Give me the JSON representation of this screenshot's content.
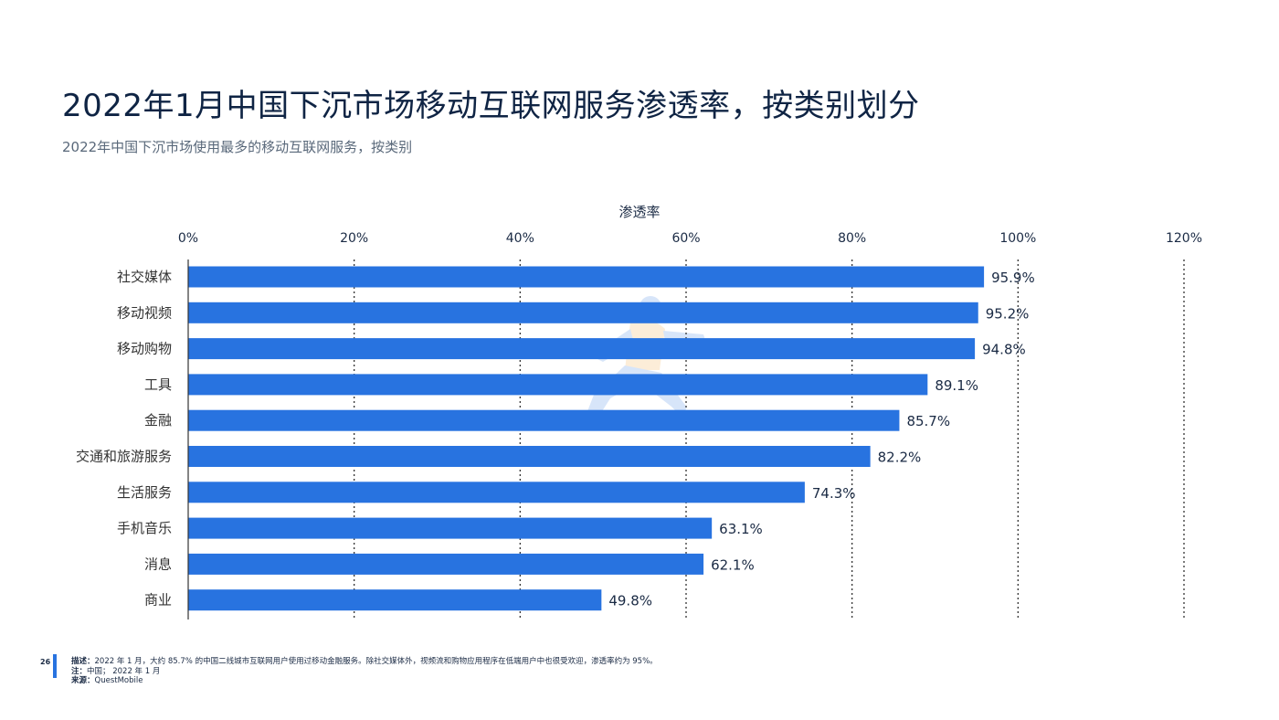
{
  "header": {
    "title": "2022年1月中国下沉市场移动互联网服务渗透率，按类别划分",
    "subtitle": "2022年中国下沉市场使用最多的移动互联网服务，按类别"
  },
  "chart_data": {
    "type": "bar",
    "orientation": "horizontal",
    "xlabel": "渗透率",
    "ylabel": "",
    "xlim": [
      0,
      120
    ],
    "x_ticks": [
      "0%",
      "20%",
      "40%",
      "60%",
      "80%",
      "100%",
      "120%"
    ],
    "x_tick_values": [
      0,
      20,
      40,
      60,
      80,
      100,
      120
    ],
    "categories": [
      "社交媒体",
      "移动视频",
      "移动购物",
      "工具",
      "金融",
      "交通和旅游服务",
      "生活服务",
      "手机音乐",
      "消息",
      "商业"
    ],
    "values": [
      95.9,
      95.2,
      94.8,
      89.1,
      85.7,
      82.2,
      74.3,
      63.1,
      62.1,
      49.8
    ],
    "value_labels": [
      "95.9%",
      "95.2%",
      "94.8%",
      "89.1%",
      "85.7%",
      "82.2%",
      "74.3%",
      "63.1%",
      "62.1%",
      "49.8%"
    ],
    "bar_color": "#2873e0",
    "grid": "vertical-dotted",
    "axis_position": "top"
  },
  "footer": {
    "page_number": "26",
    "description_label": "描述：",
    "description": "2022 年 1 月，大约 85.7% 的中国二线城市互联网用户使用过移动金融服务。除社交媒体外，视频流和购物应用程序在低端用户中也很受欢迎，渗透率约为 95%。",
    "note_label": "注：",
    "note": "中国； 2022 年 1 月",
    "source_label": "来源：",
    "source": "QuestMobile"
  }
}
